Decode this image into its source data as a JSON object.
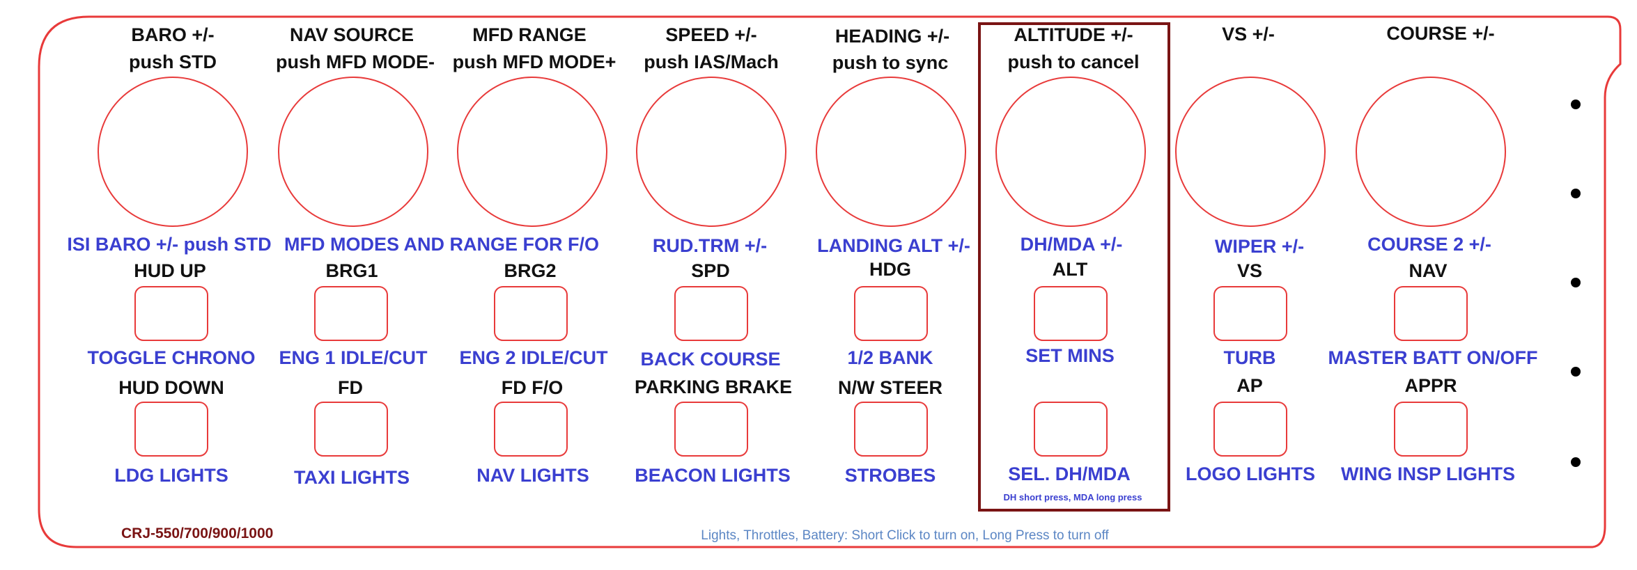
{
  "panel": {
    "colors": {
      "outline": "#e83a3a",
      "label": "#111111",
      "secondary": "#3a3fd0",
      "highlight_box": "#7a1414",
      "footer": "#5b86c4"
    },
    "columns": [
      {
        "knob_top": "BARO +/-",
        "knob_bottom": "push STD",
        "knob_secondary": "ISI BARO +/- push STD",
        "btn1_top": "HUD UP",
        "btn1_bottom": "TOGGLE CHRONO",
        "btn2_top": "HUD DOWN",
        "btn2_bottom": "LDG LIGHTS"
      },
      {
        "knob_top": "NAV SOURCE",
        "knob_bottom": "push MFD MODE-",
        "knob_secondary": "MFD MODES AND RANGE FOR F/O",
        "btn1_top": "BRG1",
        "btn1_bottom": "ENG 1 IDLE/CUT",
        "btn2_top": "FD",
        "btn2_bottom": "TAXI LIGHTS"
      },
      {
        "knob_top": "MFD RANGE",
        "knob_bottom": "push MFD MODE+",
        "knob_secondary": "",
        "btn1_top": "BRG2",
        "btn1_bottom": "ENG 2 IDLE/CUT",
        "btn2_top": "FD F/O",
        "btn2_bottom": "NAV LIGHTS"
      },
      {
        "knob_top": "SPEED +/-",
        "knob_bottom": "push IAS/Mach",
        "knob_secondary": "RUD.TRM +/-",
        "btn1_top": "SPD",
        "btn1_bottom": "BACK COURSE",
        "btn2_top": "PARKING BRAKE",
        "btn2_bottom": "BEACON LIGHTS"
      },
      {
        "knob_top": "HEADING +/-",
        "knob_bottom": "push to sync",
        "knob_secondary": "LANDING ALT +/-",
        "btn1_top": "HDG",
        "btn1_bottom": "1/2 BANK",
        "btn2_top": "N/W STEER",
        "btn2_bottom": "STROBES"
      },
      {
        "knob_top": "ALTITUDE +/-",
        "knob_bottom": "push to cancel",
        "knob_secondary": "DH/MDA +/-",
        "btn1_top": "ALT",
        "btn1_bottom": "SET MINS",
        "btn2_top": "",
        "btn2_bottom": "SEL. DH/MDA",
        "btn2_note": "DH short press, MDA long press"
      },
      {
        "knob_top": "VS +/-",
        "knob_bottom": "",
        "knob_secondary": "WIPER +/-",
        "btn1_top": "VS",
        "btn1_bottom": "TURB",
        "btn2_top": "AP",
        "btn2_bottom": "LOGO LIGHTS"
      },
      {
        "knob_top": "COURSE +/-",
        "knob_bottom": "",
        "knob_secondary": "COURSE 2 +/-",
        "btn1_top": "NAV",
        "btn1_bottom": "MASTER BATT ON/OFF",
        "btn2_top": "APPR",
        "btn2_bottom": "WING INSP LIGHTS"
      }
    ],
    "aircraft_label": "CRJ-550/700/900/1000",
    "footer_note": "Lights, Throttles, Battery: Short Click to turn on, Long Press to turn off"
  }
}
